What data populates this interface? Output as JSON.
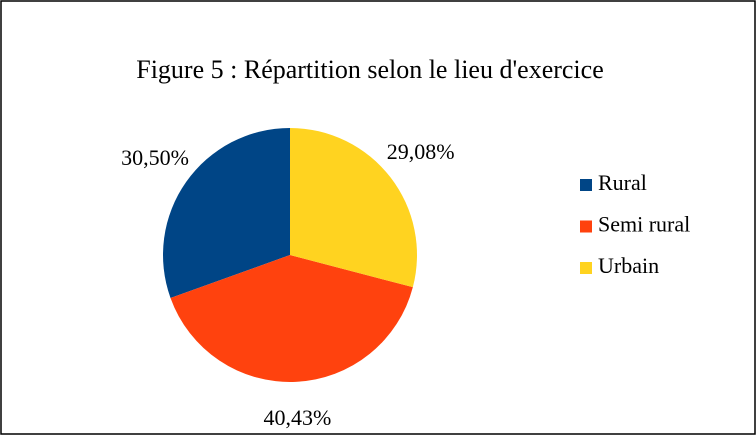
{
  "chart_data": {
    "type": "pie",
    "title": "Figure 5 : Répartition selon le lieu d'exercice",
    "categories": [
      "Rural",
      "Semi rural",
      "Urbain"
    ],
    "values": [
      30.5,
      40.43,
      29.08
    ],
    "value_labels": [
      "30,50%",
      "40,43%",
      "29,08%"
    ],
    "colors": [
      "#004586",
      "#ff420e",
      "#ffd320"
    ],
    "legend": "right"
  }
}
